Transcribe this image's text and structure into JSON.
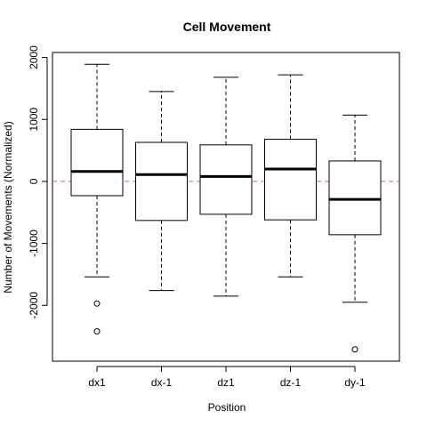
{
  "chart_data": {
    "type": "boxplot",
    "title": "Cell Movement",
    "xlabel": "Position",
    "ylabel": "Number of Movements (Normalized)",
    "categories": [
      "dx1",
      "dx-1",
      "dz1",
      "dz-1",
      "dy-1"
    ],
    "yticks": [
      -2000,
      -1000,
      0,
      1000,
      2000
    ],
    "ylim": [
      -2900,
      2080
    ],
    "reference_line": {
      "y": 0,
      "color": "#ff5555",
      "style": "dashed"
    },
    "boxes": [
      {
        "category": "dx1",
        "whisker_low": -1540,
        "q1": -230,
        "median": 160,
        "q3": 840,
        "whisker_high": 1890,
        "outliers": [
          -1970,
          -2420
        ]
      },
      {
        "category": "dx-1",
        "whisker_low": -1760,
        "q1": -630,
        "median": 110,
        "q3": 630,
        "whisker_high": 1450,
        "outliers": []
      },
      {
        "category": "dz1",
        "whisker_low": -1850,
        "q1": -530,
        "median": 80,
        "q3": 590,
        "whisker_high": 1680,
        "outliers": []
      },
      {
        "category": "dz-1",
        "whisker_low": -1540,
        "q1": -620,
        "median": 200,
        "q3": 680,
        "whisker_high": 1720,
        "outliers": []
      },
      {
        "category": "dy-1",
        "whisker_low": -1950,
        "q1": -860,
        "median": -290,
        "q3": 330,
        "whisker_high": 1070,
        "outliers": [
          -2710
        ]
      }
    ]
  }
}
